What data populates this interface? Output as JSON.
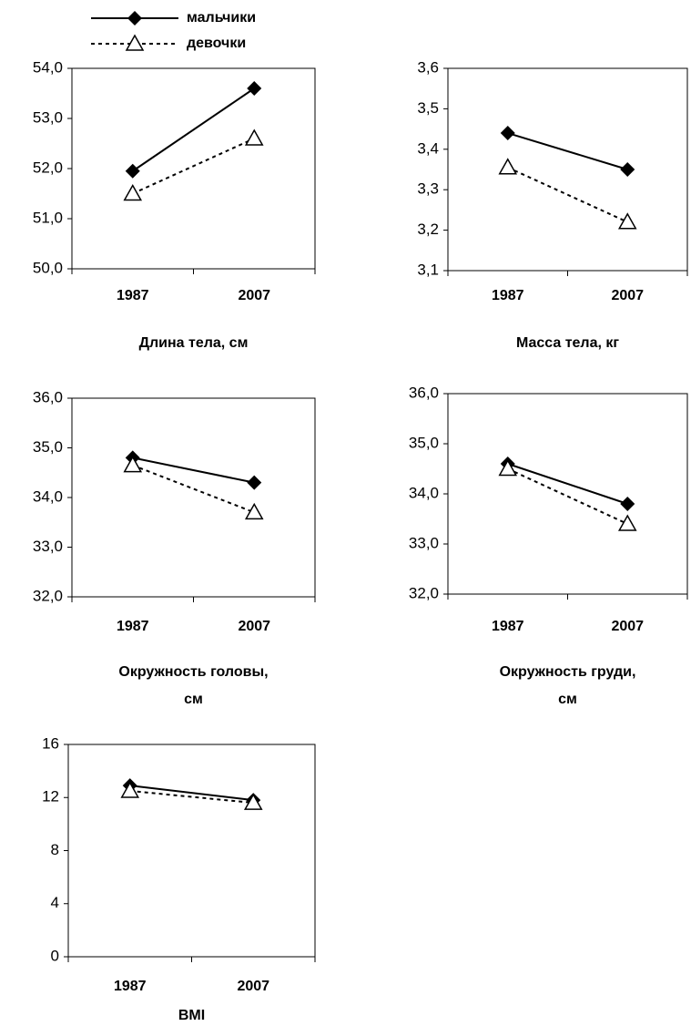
{
  "chart_data": [
    {
      "type": "line",
      "title": "Длина тела, см",
      "categories": [
        "1987",
        "2007"
      ],
      "series": [
        {
          "name": "мальчики",
          "color": "#000000",
          "marker": "diamond",
          "dash": false,
          "values": [
            51.95,
            53.6
          ]
        },
        {
          "name": "девочки",
          "color": "#000000",
          "marker": "triangle",
          "dash": true,
          "values": [
            51.5,
            52.6
          ]
        }
      ],
      "ylim": [
        50,
        54
      ],
      "yticks": [
        {
          "value": 50,
          "label": "50,0"
        },
        {
          "value": 51,
          "label": "51,0"
        },
        {
          "value": 52,
          "label": "52,0"
        },
        {
          "value": 53,
          "label": "53,0"
        },
        {
          "value": 54,
          "label": "54,0"
        }
      ]
    },
    {
      "type": "line",
      "title": "Масса тела, кг",
      "categories": [
        "1987",
        "2007"
      ],
      "series": [
        {
          "color": "#000000",
          "marker": "diamond",
          "dash": false,
          "values": [
            3.44,
            3.35
          ]
        },
        {
          "color": "#000000",
          "marker": "triangle",
          "dash": true,
          "values": [
            3.355,
            3.22
          ]
        }
      ],
      "ylim": [
        3.1,
        3.6
      ],
      "yticks": [
        {
          "value": 3.1,
          "label": "3,1"
        },
        {
          "value": 3.2,
          "label": "3,2"
        },
        {
          "value": 3.3,
          "label": "3,3"
        },
        {
          "value": 3.4,
          "label": "3,4"
        },
        {
          "value": 3.5,
          "label": "3,5"
        },
        {
          "value": 3.6,
          "label": "3,6"
        }
      ]
    },
    {
      "type": "line",
      "title": "Окружность головы,\nсм",
      "categories": [
        "1987",
        "2007"
      ],
      "series": [
        {
          "color": "#000000",
          "marker": "diamond",
          "dash": false,
          "values": [
            34.8,
            34.3
          ]
        },
        {
          "color": "#000000",
          "marker": "triangle",
          "dash": true,
          "values": [
            34.65,
            33.7
          ]
        }
      ],
      "ylim": [
        32,
        36
      ],
      "yticks": [
        {
          "value": 32,
          "label": "32,0"
        },
        {
          "value": 33,
          "label": "33,0"
        },
        {
          "value": 34,
          "label": "34,0"
        },
        {
          "value": 35,
          "label": "35,0"
        },
        {
          "value": 36,
          "label": "36,0"
        }
      ]
    },
    {
      "type": "line",
      "title": "Окружность груди,\nсм",
      "categories": [
        "1987",
        "2007"
      ],
      "series": [
        {
          "color": "#000000",
          "marker": "diamond",
          "dash": false,
          "values": [
            34.6,
            33.8
          ]
        },
        {
          "color": "#000000",
          "marker": "triangle",
          "dash": true,
          "values": [
            34.5,
            33.4
          ]
        }
      ],
      "ylim": [
        32,
        36
      ],
      "yticks": [
        {
          "value": 32,
          "label": "32,0"
        },
        {
          "value": 33,
          "label": "33,0"
        },
        {
          "value": 34,
          "label": "34,0"
        },
        {
          "value": 35,
          "label": "35,0"
        },
        {
          "value": 36,
          "label": "36,0"
        }
      ]
    },
    {
      "type": "line",
      "title": "BMI",
      "categories": [
        "1987",
        "2007"
      ],
      "series": [
        {
          "color": "#000000",
          "marker": "diamond",
          "dash": false,
          "values": [
            12.9,
            11.8
          ]
        },
        {
          "color": "#000000",
          "marker": "triangle",
          "dash": true,
          "values": [
            12.5,
            11.6
          ]
        }
      ],
      "ylim": [
        0,
        16
      ],
      "yticks": [
        0,
        4,
        8,
        12,
        16
      ]
    }
  ]
}
